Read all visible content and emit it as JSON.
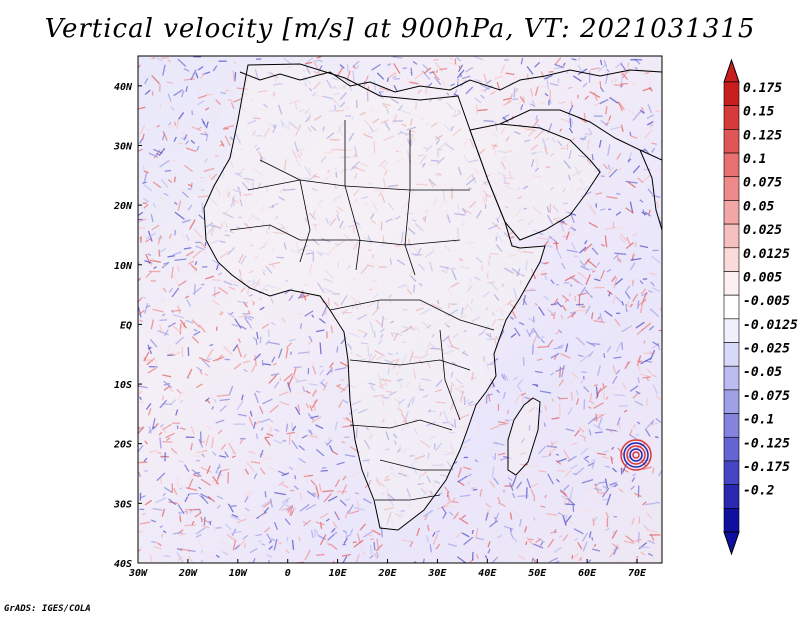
{
  "title": "Vertical velocity [m/s] at 900hPa, VT: 2021031315",
  "credit": "GrADS: IGES/COLA",
  "map": {
    "lon_range": [
      -30,
      75
    ],
    "lat_range": [
      -40,
      45
    ],
    "lon_ticks": [
      "30W",
      "20W",
      "10W",
      "0",
      "10E",
      "20E",
      "30E",
      "40E",
      "50E",
      "60E",
      "70E"
    ],
    "lat_ticks": [
      "40N",
      "30N",
      "20N",
      "10N",
      "EQ",
      "10S",
      "20S",
      "30S",
      "40S"
    ],
    "lon_tick_values": [
      -30,
      -20,
      -10,
      0,
      10,
      20,
      30,
      40,
      50,
      60,
      70
    ],
    "lat_tick_values": [
      40,
      30,
      20,
      10,
      0,
      -10,
      -20,
      -30,
      -40
    ]
  },
  "colorbar": {
    "levels": [
      "0.175",
      "0.15",
      "0.125",
      "0.1",
      "0.075",
      "0.05",
      "0.025",
      "0.0125",
      "0.005",
      "-0.005",
      "-0.0125",
      "-0.025",
      "-0.05",
      "-0.075",
      "-0.1",
      "-0.125",
      "-0.175",
      "-0.2"
    ],
    "colors": [
      "#c81e1e",
      "#d63a3a",
      "#e05656",
      "#e87070",
      "#ee8a8a",
      "#f3a6a6",
      "#f7c0c0",
      "#fadada",
      "#fdf0f0",
      "#ffffff",
      "#f0f0fd",
      "#d8d8f8",
      "#bcbcf0",
      "#a0a0e8",
      "#8484de",
      "#6464d2",
      "#4646c4",
      "#2828b0",
      "#1010a0"
    ]
  },
  "colors": {
    "pos_strong": "#d63a3a",
    "neg_strong": "#2828b0",
    "land_light": "#ffffff",
    "coast": "#000000"
  }
}
